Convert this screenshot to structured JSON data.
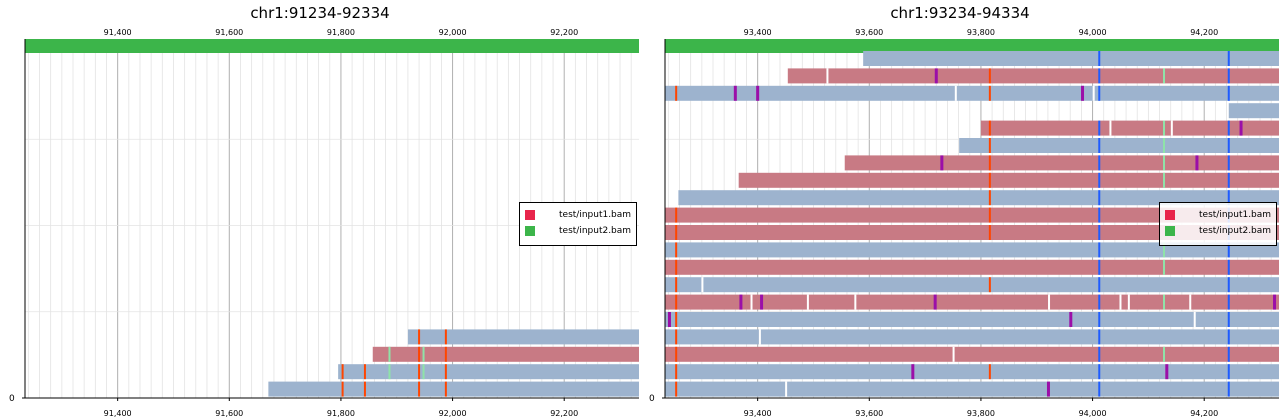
{
  "chart_data": [
    {
      "type": "genome-track",
      "title": "chr1:91234-92334",
      "xlim": [
        91234,
        92334
      ],
      "ylim": [
        0,
        40
      ],
      "ytick_labels": [
        "0"
      ],
      "xticks": [
        91400,
        91600,
        91800,
        92000,
        92200
      ],
      "xtick_labels": [
        "91,400",
        "91,600",
        "91,800",
        "92,000",
        "92,200"
      ],
      "grid": true,
      "legend": {
        "placement": "right",
        "entries": [
          {
            "label": "test/input1.bam",
            "color": "#e8254b"
          },
          {
            "label": "test/input2.bam",
            "color": "#3cb54a"
          }
        ]
      },
      "reference_bar_color": "#3cb54a",
      "reads": [
        {
          "start": 91670,
          "end": 92334,
          "row": 1,
          "strand": "plus",
          "mismatches": [
            {
              "pos": 91803,
              "base": "C"
            },
            {
              "pos": 91843,
              "base": "C"
            },
            {
              "pos": 91940,
              "base": "C"
            },
            {
              "pos": 91988,
              "base": "C"
            }
          ]
        },
        {
          "start": 91795,
          "end": 92334,
          "row": 2,
          "strand": "plus",
          "mismatches": [
            {
              "pos": 91803,
              "base": "C"
            },
            {
              "pos": 91843,
              "base": "C"
            },
            {
              "pos": 91887,
              "base": "A"
            },
            {
              "pos": 91940,
              "base": "C"
            },
            {
              "pos": 91948,
              "base": "A"
            },
            {
              "pos": 91988,
              "base": "C"
            }
          ]
        },
        {
          "start": 91857,
          "end": 92334,
          "row": 3,
          "strand": "minus",
          "mismatches": [
            {
              "pos": 91887,
              "base": "A"
            },
            {
              "pos": 91940,
              "base": "C"
            },
            {
              "pos": 91948,
              "base": "A"
            },
            {
              "pos": 91988,
              "base": "C"
            }
          ]
        },
        {
          "start": 91920,
          "end": 92334,
          "row": 4,
          "strand": "plus",
          "mismatches": [
            {
              "pos": 91940,
              "base": "C"
            },
            {
              "pos": 91988,
              "base": "C"
            }
          ]
        }
      ]
    },
    {
      "type": "genome-track",
      "title": "chr1:93234-94334",
      "xlim": [
        93234,
        94334
      ],
      "ylim": [
        0,
        20
      ],
      "ytick_labels": [
        "0"
      ],
      "xticks": [
        93400,
        93600,
        93800,
        94000,
        94200
      ],
      "xtick_labels": [
        "93,400",
        "93,600",
        "93,800",
        "94,000",
        "94,200"
      ],
      "grid": true,
      "legend": {
        "placement": "right",
        "entries": [
          {
            "label": "test/input1.bam",
            "color": "#e8254b"
          },
          {
            "label": "test/input2.bam",
            "color": "#3cb54a"
          }
        ]
      },
      "reference_bar_color": "#3cb54a",
      "reads": [
        {
          "start": 93234,
          "end": 94334,
          "row": 1,
          "strand": "plus",
          "mismatches": [
            {
              "pos": 93254,
              "base": "C"
            },
            {
              "pos": 93451,
              "base": "I"
            },
            {
              "pos": 93921,
              "base": "D"
            },
            {
              "pos": 94012,
              "base": "G"
            },
            {
              "pos": 94244,
              "base": "G"
            }
          ]
        },
        {
          "start": 93234,
          "end": 94334,
          "row": 2,
          "strand": "plus",
          "mismatches": [
            {
              "pos": 93254,
              "base": "C"
            },
            {
              "pos": 93678,
              "base": "D"
            },
            {
              "pos": 93816,
              "base": "C"
            },
            {
              "pos": 94012,
              "base": "G"
            },
            {
              "pos": 94133,
              "base": "D"
            },
            {
              "pos": 94244,
              "base": "G"
            }
          ]
        },
        {
          "start": 93234,
          "end": 94334,
          "row": 3,
          "strand": "minus",
          "mismatches": [
            {
              "pos": 93254,
              "base": "C"
            },
            {
              "pos": 93751,
              "base": "I"
            },
            {
              "pos": 94012,
              "base": "G"
            },
            {
              "pos": 94128,
              "base": "A"
            },
            {
              "pos": 94244,
              "base": "G"
            }
          ]
        },
        {
          "start": 93234,
          "end": 94334,
          "row": 4,
          "strand": "plus",
          "mismatches": [
            {
              "pos": 93254,
              "base": "C"
            },
            {
              "pos": 93404,
              "base": "I"
            },
            {
              "pos": 94012,
              "base": "G"
            },
            {
              "pos": 94244,
              "base": "G"
            }
          ]
        },
        {
          "start": 93234,
          "end": 94334,
          "row": 5,
          "strand": "plus",
          "mismatches": [
            {
              "pos": 93242,
              "base": "D"
            },
            {
              "pos": 93254,
              "base": "C"
            },
            {
              "pos": 93961,
              "base": "D"
            },
            {
              "pos": 94012,
              "base": "G"
            },
            {
              "pos": 94183,
              "base": "I"
            },
            {
              "pos": 94244,
              "base": "G"
            }
          ]
        },
        {
          "start": 93234,
          "end": 94334,
          "row": 6,
          "strand": "minus",
          "mismatches": [
            {
              "pos": 93254,
              "base": "C"
            },
            {
              "pos": 93370,
              "base": "D"
            },
            {
              "pos": 93389,
              "base": "I"
            },
            {
              "pos": 93407,
              "base": "D"
            },
            {
              "pos": 93490,
              "base": "I"
            },
            {
              "pos": 93575,
              "base": "I"
            },
            {
              "pos": 93718,
              "base": "D"
            },
            {
              "pos": 93922,
              "base": "I"
            },
            {
              "pos": 94012,
              "base": "G"
            },
            {
              "pos": 94050,
              "base": "I"
            },
            {
              "pos": 94065,
              "base": "I"
            },
            {
              "pos": 94128,
              "base": "A"
            },
            {
              "pos": 94175,
              "base": "I"
            },
            {
              "pos": 94244,
              "base": "G"
            },
            {
              "pos": 94326,
              "base": "D"
            }
          ]
        },
        {
          "start": 93234,
          "end": 94334,
          "row": 7,
          "strand": "plus",
          "mismatches": [
            {
              "pos": 93254,
              "base": "C"
            },
            {
              "pos": 93301,
              "base": "I"
            },
            {
              "pos": 93816,
              "base": "C"
            },
            {
              "pos": 94012,
              "base": "G"
            },
            {
              "pos": 94244,
              "base": "G"
            }
          ]
        },
        {
          "start": 93234,
          "end": 94334,
          "row": 8,
          "strand": "minus",
          "mismatches": [
            {
              "pos": 93254,
              "base": "C"
            },
            {
              "pos": 94012,
              "base": "G"
            },
            {
              "pos": 94128,
              "base": "A"
            },
            {
              "pos": 94244,
              "base": "G"
            }
          ]
        },
        {
          "start": 93234,
          "end": 94334,
          "row": 9,
          "strand": "plus",
          "mismatches": [
            {
              "pos": 93254,
              "base": "C"
            },
            {
              "pos": 94012,
              "base": "G"
            },
            {
              "pos": 94128,
              "base": "A"
            },
            {
              "pos": 94244,
              "base": "G"
            }
          ]
        },
        {
          "start": 93234,
          "end": 94334,
          "row": 10,
          "strand": "minus",
          "mismatches": [
            {
              "pos": 93254,
              "base": "C"
            },
            {
              "pos": 93816,
              "base": "C"
            },
            {
              "pos": 94012,
              "base": "G"
            },
            {
              "pos": 94244,
              "base": "G"
            }
          ]
        },
        {
          "start": 93234,
          "end": 94334,
          "row": 11,
          "strand": "minus",
          "mismatches": [
            {
              "pos": 93254,
              "base": "C"
            },
            {
              "pos": 93816,
              "base": "C"
            },
            {
              "pos": 94012,
              "base": "G"
            },
            {
              "pos": 94244,
              "base": "G"
            }
          ]
        },
        {
          "start": 93258,
          "end": 94334,
          "row": 12,
          "strand": "plus",
          "mismatches": [
            {
              "pos": 93816,
              "base": "C"
            },
            {
              "pos": 94012,
              "base": "G"
            },
            {
              "pos": 94244,
              "base": "G"
            }
          ]
        },
        {
          "start": 93366,
          "end": 94334,
          "row": 13,
          "strand": "minus",
          "mismatches": [
            {
              "pos": 93816,
              "base": "C"
            },
            {
              "pos": 94012,
              "base": "G"
            },
            {
              "pos": 94128,
              "base": "A"
            },
            {
              "pos": 94244,
              "base": "G"
            }
          ]
        },
        {
          "start": 93556,
          "end": 94334,
          "row": 14,
          "strand": "minus",
          "mismatches": [
            {
              "pos": 93730,
              "base": "D"
            },
            {
              "pos": 93816,
              "base": "C"
            },
            {
              "pos": 94012,
              "base": "G"
            },
            {
              "pos": 94128,
              "base": "A"
            },
            {
              "pos": 94187,
              "base": "D"
            },
            {
              "pos": 94244,
              "base": "G"
            }
          ]
        },
        {
          "start": 93761,
          "end": 94334,
          "row": 15,
          "strand": "plus",
          "mismatches": [
            {
              "pos": 93816,
              "base": "C"
            },
            {
              "pos": 94012,
              "base": "G"
            },
            {
              "pos": 94128,
              "base": "A"
            },
            {
              "pos": 94244,
              "base": "G"
            }
          ]
        },
        {
          "start": 93800,
          "end": 94334,
          "row": 16,
          "strand": "minus",
          "mismatches": [
            {
              "pos": 93816,
              "base": "C"
            },
            {
              "pos": 94012,
              "base": "G"
            },
            {
              "pos": 94032,
              "base": "I"
            },
            {
              "pos": 94128,
              "base": "A"
            },
            {
              "pos": 94142,
              "base": "I"
            },
            {
              "pos": 94244,
              "base": "G"
            },
            {
              "pos": 94266,
              "base": "D"
            }
          ]
        },
        {
          "start": 94244,
          "end": 94334,
          "row": 17,
          "strand": "plus",
          "mismatches": []
        },
        {
          "start": 93234,
          "end": 94334,
          "row": 18,
          "strand": "plus",
          "mismatches": [
            {
              "pos": 93254,
              "base": "C"
            },
            {
              "pos": 93360,
              "base": "D"
            },
            {
              "pos": 93400,
              "base": "D"
            },
            {
              "pos": 93755,
              "base": "I"
            },
            {
              "pos": 93816,
              "base": "C"
            },
            {
              "pos": 93982,
              "base": "D"
            },
            {
              "pos": 94002,
              "base": "I"
            },
            {
              "pos": 94012,
              "base": "G"
            },
            {
              "pos": 94244,
              "base": "G"
            }
          ]
        },
        {
          "start": 93454,
          "end": 94334,
          "row": 19,
          "strand": "minus",
          "mismatches": [
            {
              "pos": 93525,
              "base": "I"
            },
            {
              "pos": 93720,
              "base": "D"
            },
            {
              "pos": 93816,
              "base": "C"
            },
            {
              "pos": 94012,
              "base": "G"
            },
            {
              "pos": 94128,
              "base": "A"
            },
            {
              "pos": 94244,
              "base": "G"
            }
          ]
        },
        {
          "start": 93589,
          "end": 94334,
          "row": 20,
          "strand": "plus",
          "mismatches": [
            {
              "pos": 94012,
              "base": "G"
            },
            {
              "pos": 94244,
              "base": "G"
            }
          ]
        }
      ]
    }
  ],
  "colors": {
    "read_plus": "#9db3ce",
    "read_minus": "#c87a84",
    "base_C": "#ff4500",
    "base_A": "#8fe3a8",
    "base_G": "#1e5cff",
    "deletion": "#9b0fa8",
    "insertion": "#ffffff"
  }
}
